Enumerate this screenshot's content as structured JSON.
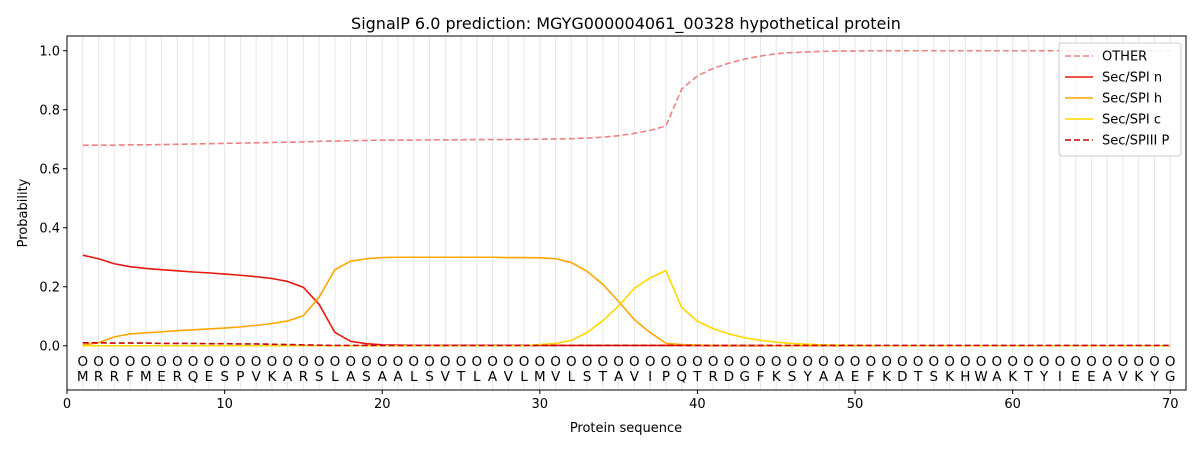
{
  "chart_data": {
    "type": "line",
    "title": "SignalP 6.0 prediction: MGYG000004061_00328 hypothetical protein",
    "xlabel": "Protein sequence",
    "ylabel": "Probability",
    "xlim": [
      0,
      71
    ],
    "ylim": [
      -0.15,
      1.05
    ],
    "x_ticks": [
      0,
      10,
      20,
      30,
      40,
      50,
      60,
      70
    ],
    "y_ticks": [
      0.0,
      0.2,
      0.4,
      0.6,
      0.8,
      1.0
    ],
    "y_tick_labels": [
      "0.0",
      "0.2",
      "0.4",
      "0.6",
      "0.8",
      "1.0"
    ],
    "legend_position": "top-right",
    "sequence": [
      "M",
      "R",
      "R",
      "F",
      "M",
      "E",
      "R",
      "Q",
      "E",
      "S",
      "P",
      "V",
      "K",
      "A",
      "R",
      "S",
      "L",
      "A",
      "S",
      "A",
      "A",
      "L",
      "S",
      "V",
      "T",
      "L",
      "A",
      "V",
      "L",
      "M",
      "V",
      "L",
      "S",
      "T",
      "A",
      "V",
      "I",
      "P",
      "Q",
      "T",
      "R",
      "D",
      "G",
      "F",
      "K",
      "S",
      "Y",
      "A",
      "A",
      "E",
      "F",
      "K",
      "D",
      "T",
      "S",
      "K",
      "H",
      "W",
      "A",
      "K",
      "T",
      "Y",
      "I",
      "E",
      "E",
      "A",
      "V",
      "K",
      "Y",
      "G"
    ],
    "region_marker": "O",
    "series": [
      {
        "name": "OTHER",
        "color": "#f08080",
        "dash": true,
        "values": [
          0.68,
          0.68,
          0.68,
          0.681,
          0.681,
          0.682,
          0.683,
          0.684,
          0.685,
          0.686,
          0.687,
          0.688,
          0.689,
          0.69,
          0.691,
          0.693,
          0.694,
          0.695,
          0.696,
          0.697,
          0.697,
          0.697,
          0.698,
          0.698,
          0.698,
          0.699,
          0.699,
          0.699,
          0.7,
          0.7,
          0.701,
          0.702,
          0.704,
          0.707,
          0.712,
          0.72,
          0.73,
          0.745,
          0.87,
          0.915,
          0.94,
          0.958,
          0.972,
          0.982,
          0.99,
          0.994,
          0.996,
          0.998,
          0.999,
          0.999,
          1.0,
          1.0,
          1.0,
          1.0,
          1.0,
          1.0,
          1.0,
          1.0,
          1.0,
          1.0,
          1.0,
          1.0,
          1.0,
          1.0,
          1.0,
          1.0,
          1.0,
          1.0,
          1.0,
          1.0
        ]
      },
      {
        "name": "Sec/SPI n",
        "color": "#e8180c",
        "dash": false,
        "values": [
          0.307,
          0.295,
          0.278,
          0.268,
          0.262,
          0.258,
          0.254,
          0.25,
          0.247,
          0.243,
          0.239,
          0.234,
          0.228,
          0.218,
          0.198,
          0.14,
          0.045,
          0.015,
          0.007,
          0.003,
          0.002,
          0.001,
          0.001,
          0.001,
          0.001,
          0.001,
          0.001,
          0.001,
          0.001,
          0.001,
          0.001,
          0.001,
          0.001,
          0.001,
          0.001,
          0.001,
          0.001,
          0.001,
          0.001,
          0.001,
          0.0,
          0.0,
          0.0,
          0.0,
          0.0,
          0.0,
          0.0,
          0.0,
          0.0,
          0.0,
          0.0,
          0.0,
          0.0,
          0.0,
          0.0,
          0.0,
          0.0,
          0.0,
          0.0,
          0.0,
          0.0,
          0.0,
          0.0,
          0.0,
          0.0,
          0.0,
          0.0,
          0.0,
          0.0,
          0.0
        ]
      },
      {
        "name": "Sec/SPI h",
        "color": "#ffa500",
        "dash": false,
        "values": [
          0.003,
          0.01,
          0.03,
          0.04,
          0.044,
          0.047,
          0.051,
          0.054,
          0.057,
          0.06,
          0.064,
          0.069,
          0.075,
          0.084,
          0.102,
          0.165,
          0.258,
          0.287,
          0.295,
          0.299,
          0.3,
          0.3,
          0.3,
          0.3,
          0.3,
          0.3,
          0.3,
          0.299,
          0.299,
          0.298,
          0.295,
          0.282,
          0.252,
          0.208,
          0.15,
          0.088,
          0.045,
          0.008,
          0.004,
          0.002,
          0.001,
          0.001,
          0.001,
          0.001,
          0.0,
          0.0,
          0.0,
          0.0,
          0.0,
          0.0,
          0.0,
          0.0,
          0.0,
          0.0,
          0.0,
          0.0,
          0.0,
          0.0,
          0.0,
          0.0,
          0.0,
          0.0,
          0.0,
          0.0,
          0.0,
          0.0,
          0.0,
          0.0,
          0.0,
          0.0
        ]
      },
      {
        "name": "Sec/SPI c",
        "color": "#ffd700",
        "dash": false,
        "values": [
          0.0,
          0.0,
          0.0,
          0.0,
          0.0,
          0.0,
          0.0,
          0.0,
          0.0,
          0.0,
          0.0,
          0.0,
          0.0,
          0.0,
          0.0,
          0.0,
          0.0,
          0.0,
          0.0,
          0.0,
          0.0,
          0.0,
          0.0,
          0.0,
          0.0,
          0.0,
          0.0,
          0.0,
          0.0,
          0.004,
          0.008,
          0.018,
          0.045,
          0.085,
          0.135,
          0.195,
          0.23,
          0.255,
          0.13,
          0.083,
          0.058,
          0.04,
          0.027,
          0.018,
          0.012,
          0.008,
          0.005,
          0.003,
          0.002,
          0.001,
          0.001,
          0.0,
          0.0,
          0.0,
          0.0,
          0.0,
          0.0,
          0.0,
          0.0,
          0.0,
          0.0,
          0.0,
          0.0,
          0.0,
          0.0,
          0.0,
          0.0,
          0.0,
          0.0,
          0.0
        ]
      },
      {
        "name": "Sec/SPIII P",
        "color": "#cc0000",
        "dash": true,
        "values": [
          0.01,
          0.01,
          0.009,
          0.009,
          0.009,
          0.008,
          0.008,
          0.008,
          0.007,
          0.007,
          0.006,
          0.006,
          0.005,
          0.004,
          0.003,
          0.002,
          0.001,
          0.001,
          0.001,
          0.001,
          0.001,
          0.001,
          0.001,
          0.001,
          0.001,
          0.001,
          0.001,
          0.001,
          0.001,
          0.001,
          0.001,
          0.001,
          0.001,
          0.001,
          0.001,
          0.001,
          0.001,
          0.001,
          0.001,
          0.001,
          0.001,
          0.001,
          0.001,
          0.001,
          0.001,
          0.001,
          0.001,
          0.001,
          0.001,
          0.001,
          0.001,
          0.001,
          0.001,
          0.001,
          0.001,
          0.001,
          0.001,
          0.001,
          0.001,
          0.001,
          0.001,
          0.001,
          0.001,
          0.001,
          0.001,
          0.001,
          0.001,
          0.001,
          0.001,
          0.001
        ]
      }
    ]
  }
}
